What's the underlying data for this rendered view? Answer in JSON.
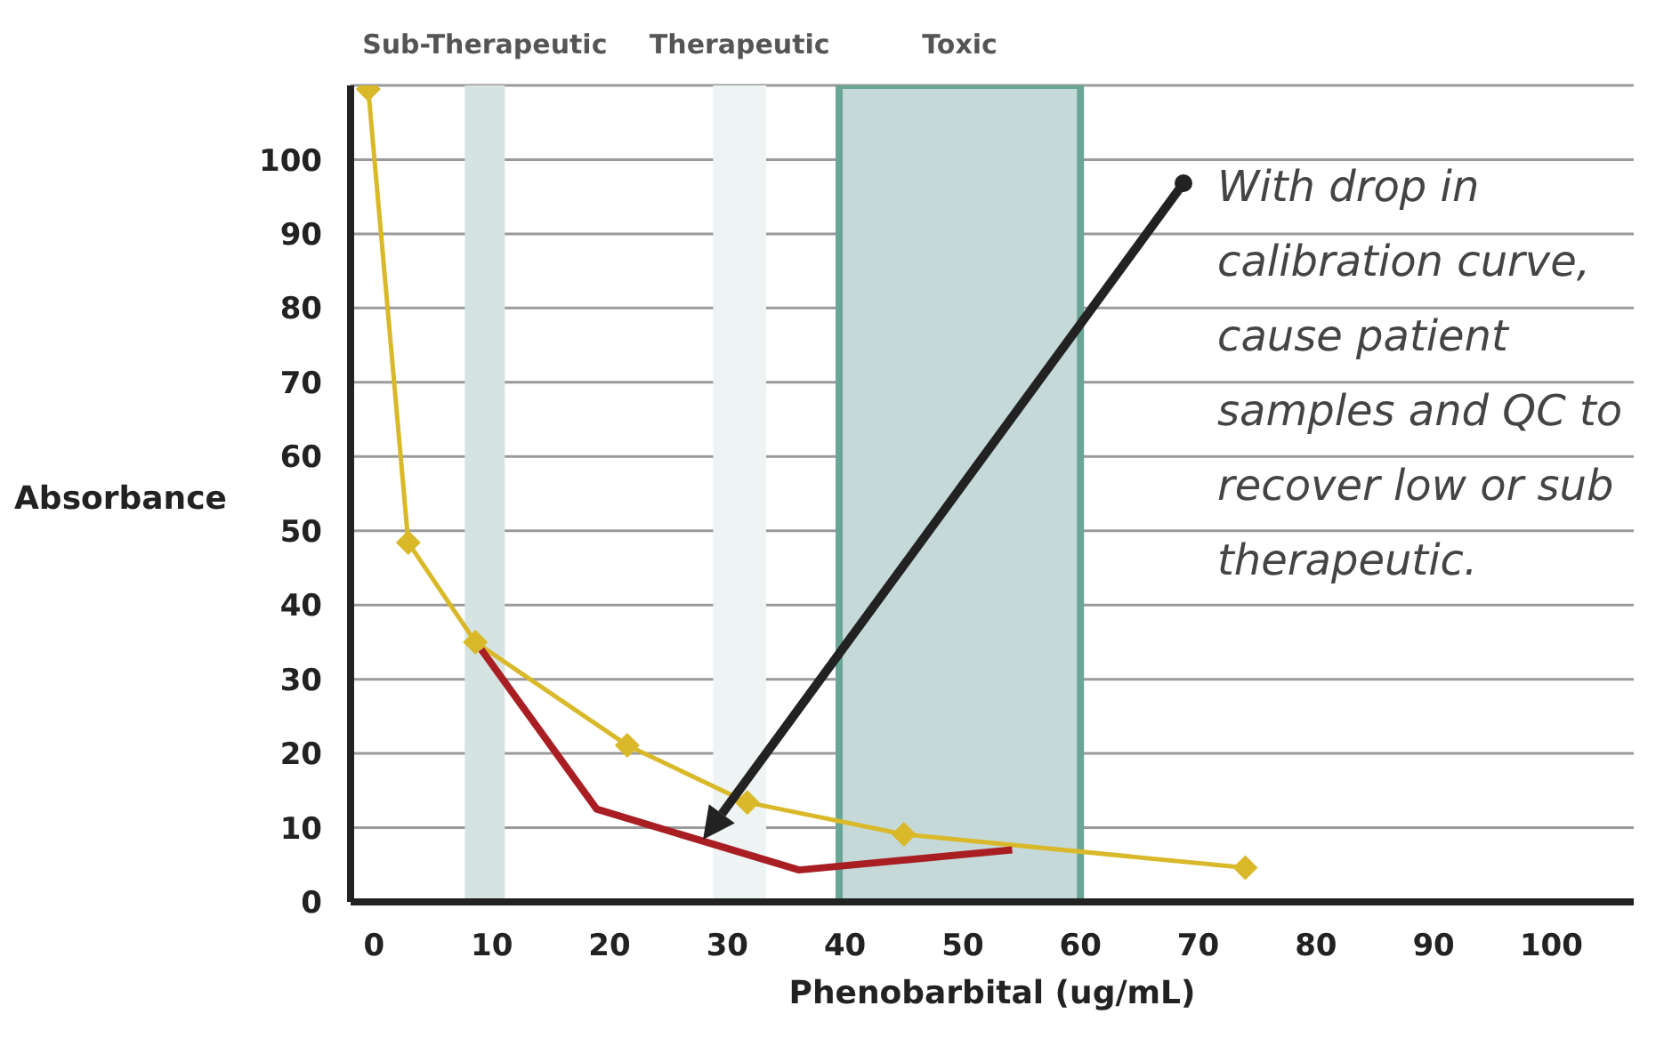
{
  "chart_data": {
    "type": "line",
    "xlabel": "Phenobarbital (ug/mL)",
    "ylabel": "Absorbance",
    "xlim": [
      -2,
      107
    ],
    "xticks": [
      0,
      10,
      20,
      30,
      40,
      50,
      60,
      70,
      80,
      90,
      100
    ],
    "ylim": [
      0,
      110
    ],
    "yticks": [
      0,
      10,
      20,
      30,
      40,
      50,
      60,
      70,
      80,
      90,
      100,
      {
        "value": 110,
        "label": null
      }
    ],
    "grid": "y",
    "series": [
      {
        "color": "#d9b92a",
        "marker": "diamond",
        "x": [
          -0.5,
          2.9,
          8.6,
          21.5,
          31.7,
          45,
          74
        ],
        "values": [
          109.5,
          48.4,
          35,
          21.1,
          13.4,
          9.1,
          4.6
        ]
      },
      {
        "color": "#a81e23",
        "marker": "none",
        "x": [
          9.1,
          18.9,
          36.1,
          54.2
        ],
        "values": [
          34,
          12.5,
          4.3,
          7
        ]
      }
    ],
    "bands": [
      {
        "axis": "x",
        "from": 7.7,
        "to": 11.1,
        "label": "Sub-Therapeutic",
        "color": "#d6e3e3"
      },
      {
        "axis": "x",
        "from": 28.8,
        "to": 33.3,
        "label": "Therapeutic",
        "color": "#eef4f4"
      },
      {
        "axis": "x",
        "from": 39.5,
        "to": 60,
        "label": "Toxic",
        "color": "#c5d9d9"
      }
    ],
    "annotations": [
      "With drop in calibration curve, cause patient samples and QC to recover low or sub therapeutic."
    ]
  }
}
